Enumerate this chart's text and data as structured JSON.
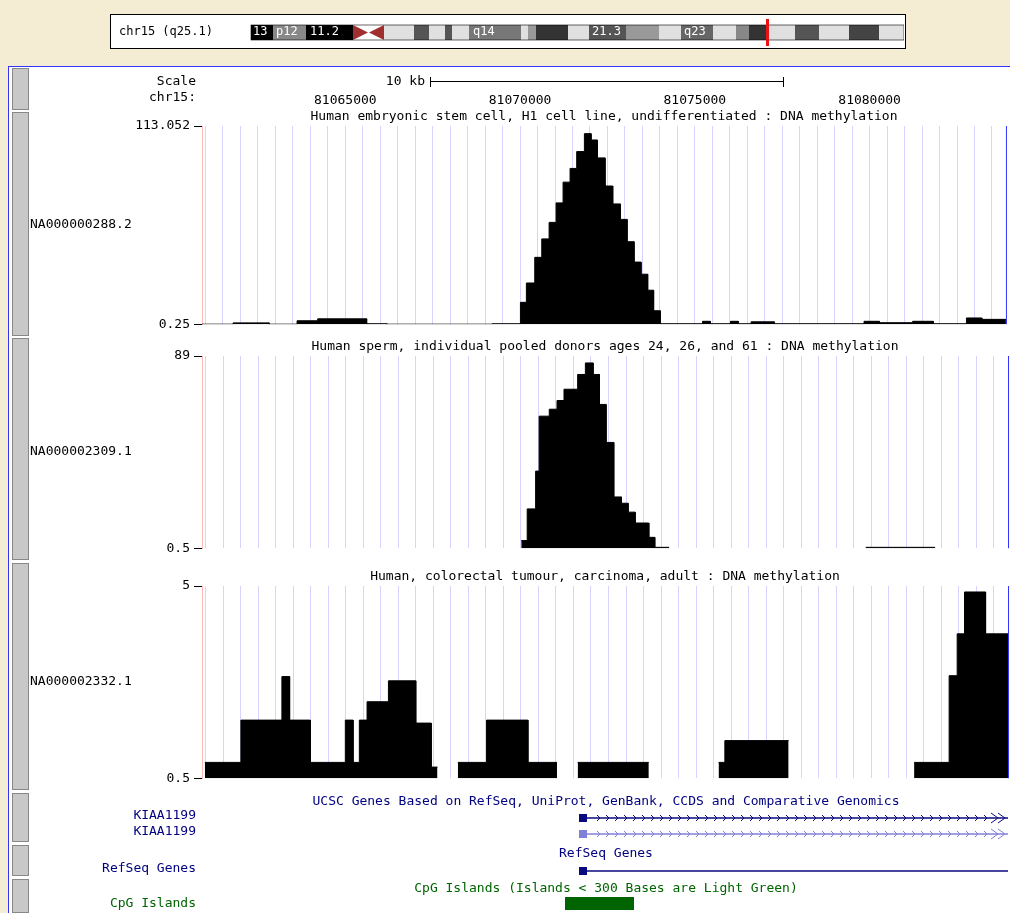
{
  "chart_data": [
    {
      "type": "other",
      "annotations": [
        "chr15 (q25.1)",
        "13",
        "p12",
        "11.2",
        "q14",
        "21.3",
        "q23"
      ]
    },
    {
      "type": "area",
      "title": "Human embryonic stem cell, H1 cell line, undifferentiated : DNA methylation",
      "ylabel": "NA000000288.2",
      "xlabel": "chr15:",
      "annotations": [
        "Scale",
        "10 kb"
      ],
      "grid": "x",
      "color": "#000000",
      "xlim": [
        81060900,
        81083900
      ],
      "ylim": [
        0.25,
        113.052
      ],
      "yticks": [
        113.052,
        0.25
      ],
      "xticks": [
        {
          "value": 81061000,
          "label": null
        },
        {
          "value": 81061500,
          "label": null
        },
        {
          "value": 81062000,
          "label": null
        },
        {
          "value": 81062500,
          "label": null
        },
        {
          "value": 81063000,
          "label": null
        },
        {
          "value": 81063500,
          "label": null
        },
        {
          "value": 81064000,
          "label": null
        },
        {
          "value": 81064500,
          "label": null
        },
        81065000,
        {
          "value": 81065500,
          "label": null
        },
        {
          "value": 81066000,
          "label": null
        },
        {
          "value": 81066500,
          "label": null
        },
        {
          "value": 81067000,
          "label": null
        },
        {
          "value": 81067500,
          "label": null
        },
        {
          "value": 81068000,
          "label": null
        },
        {
          "value": 81068500,
          "label": null
        },
        {
          "value": 81069000,
          "label": null
        },
        {
          "value": 81069500,
          "label": null
        },
        81070000,
        {
          "value": 81070500,
          "label": null
        },
        {
          "value": 81071000,
          "label": null
        },
        {
          "value": 81071500,
          "label": null
        },
        {
          "value": 81072000,
          "label": null
        },
        {
          "value": 81072500,
          "label": null
        },
        {
          "value": 81073000,
          "label": null
        },
        {
          "value": 81073500,
          "label": null
        },
        {
          "value": 81074000,
          "label": null
        },
        {
          "value": 81074500,
          "label": null
        },
        81075000,
        {
          "value": 81075500,
          "label": null
        },
        {
          "value": 81076000,
          "label": null
        },
        {
          "value": 81076500,
          "label": null
        },
        {
          "value": 81077000,
          "label": null
        },
        {
          "value": 81077500,
          "label": null
        },
        {
          "value": 81078000,
          "label": null
        },
        {
          "value": 81078500,
          "label": null
        },
        {
          "value": 81079000,
          "label": null
        },
        {
          "value": 81079500,
          "label": null
        },
        81080000,
        {
          "value": 81080500,
          "label": null
        },
        {
          "value": 81081000,
          "label": null
        },
        {
          "value": 81081500,
          "label": null
        },
        {
          "value": 81082000,
          "label": null
        },
        {
          "value": 81082500,
          "label": null
        },
        {
          "value": 81083000,
          "label": null
        },
        {
          "value": 81083500,
          "label": null
        }
      ],
      "x": [
        81060900,
        81061790,
        81061790,
        81062820,
        81062820,
        81063620,
        81063620,
        81064210,
        81064210,
        81065610,
        81065610,
        81066190,
        81066190,
        81069200,
        81069200,
        81070010,
        81070010,
        81070180,
        81070180,
        81070420,
        81070420,
        81070620,
        81070620,
        81070830,
        81070830,
        81071030,
        81071030,
        81071230,
        81071230,
        81071430,
        81071430,
        81071620,
        81071620,
        81071840,
        81071840,
        81072030,
        81072030,
        81072210,
        81072210,
        81072430,
        81072430,
        81072650,
        81072650,
        81072870,
        81072870,
        81073060,
        81073060,
        81073260,
        81073260,
        81073460,
        81073460,
        81073650,
        81073650,
        81073820,
        81073820,
        81074010,
        81074010,
        81075220,
        81075220,
        81075440,
        81075440,
        81076020,
        81076020,
        81076240,
        81076240,
        81076610,
        81076610,
        81077270,
        81077270,
        81079840,
        81079840,
        81080280,
        81080280,
        81081230,
        81081230,
        81081820,
        81081820,
        81082770,
        81082770,
        81083210,
        81083210,
        81083900
      ],
      "values": [
        0.25,
        0.25,
        1,
        1,
        0.25,
        0.25,
        2.2,
        2.2,
        3.3,
        3.3,
        0.5,
        0.5,
        0.25,
        0.25,
        0.5,
        0.5,
        12.7,
        12.7,
        23.7,
        23.7,
        38.3,
        38.3,
        48.8,
        48.8,
        58.2,
        58.2,
        69.3,
        69.3,
        81.1,
        81.1,
        88.9,
        88.9,
        98.5,
        98.5,
        108.7,
        108.7,
        105.1,
        105.1,
        94.9,
        94.9,
        78.9,
        78.9,
        68.7,
        68.7,
        59.9,
        59.9,
        47.2,
        47.2,
        35.6,
        35.6,
        28.7,
        28.7,
        19.6,
        19.6,
        7.9,
        7.9,
        0.5,
        0.5,
        1.9,
        1.9,
        0.5,
        0.5,
        1.9,
        1.9,
        0.5,
        0.5,
        1.6,
        1.6,
        0.5,
        0.5,
        1.9,
        1.9,
        1.1,
        1.1,
        1.9,
        1.9,
        0.5,
        0.5,
        3.8,
        3.8,
        3,
        3
      ]
    },
    {
      "type": "area",
      "title": "Human sperm, individual pooled donors ages 24, 26, and 61 : DNA methylation",
      "ylabel": "NA000002309.1",
      "grid": "x",
      "tick_labels": "y",
      "xlim": [
        81060900,
        81083900
      ],
      "ylim": [
        0.5,
        89
      ],
      "yticks": [
        89,
        0.5
      ],
      "xticks": [
        {
          "value": 81061000,
          "label": null
        },
        {
          "value": 81061500,
          "label": null
        },
        {
          "value": 81062000,
          "label": null
        },
        {
          "value": 81062500,
          "label": null
        },
        {
          "value": 81063000,
          "label": null
        },
        {
          "value": 81063500,
          "label": null
        },
        {
          "value": 81064000,
          "label": null
        },
        {
          "value": 81064500,
          "label": null
        },
        81065000,
        {
          "value": 81065500,
          "label": null
        },
        {
          "value": 81066000,
          "label": null
        },
        {
          "value": 81066500,
          "label": null
        },
        {
          "value": 81067000,
          "label": null
        },
        {
          "value": 81067500,
          "label": null
        },
        {
          "value": 81068000,
          "label": null
        },
        {
          "value": 81068500,
          "label": null
        },
        {
          "value": 81069000,
          "label": null
        },
        {
          "value": 81069500,
          "label": null
        },
        81070000,
        {
          "value": 81070500,
          "label": null
        },
        {
          "value": 81071000,
          "label": null
        },
        {
          "value": 81071500,
          "label": null
        },
        {
          "value": 81072000,
          "label": null
        },
        {
          "value": 81072500,
          "label": null
        },
        {
          "value": 81073000,
          "label": null
        },
        {
          "value": 81073500,
          "label": null
        },
        {
          "value": 81074000,
          "label": null
        },
        {
          "value": 81074500,
          "label": null
        },
        81075000,
        {
          "value": 81075500,
          "label": null
        },
        {
          "value": 81076000,
          "label": null
        },
        {
          "value": 81076500,
          "label": null
        },
        {
          "value": 81077000,
          "label": null
        },
        {
          "value": 81077500,
          "label": null
        },
        {
          "value": 81078000,
          "label": null
        },
        {
          "value": 81078500,
          "label": null
        },
        {
          "value": 81079000,
          "label": null
        },
        {
          "value": 81079500,
          "label": null
        },
        81080000,
        {
          "value": 81080500,
          "label": null
        },
        {
          "value": 81081000,
          "label": null
        },
        {
          "value": 81081500,
          "label": null
        },
        {
          "value": 81082000,
          "label": null
        },
        {
          "value": 81082500,
          "label": null
        },
        {
          "value": 81083000,
          "label": null
        },
        {
          "value": 81083500,
          "label": null
        }
      ],
      "series": [
        {
          "color": "#000000",
          "x": [
            81070010,
            81070180,
            81070180,
            81070420,
            81070420,
            81070520,
            81070520,
            81070810,
            81070810,
            81071030,
            81071030,
            81071230,
            81071230,
            81071620,
            81071620,
            81071840,
            81071840,
            81072060,
            81072060,
            81072240,
            81072240,
            81072430,
            81072430,
            81072650,
            81072650,
            81072870,
            81072870,
            81073060,
            81073060,
            81073260,
            81073260,
            81073650,
            81073650,
            81073820,
            81073820,
            81074230
          ],
          "values": [
            4,
            4,
            18.6,
            18.6,
            36,
            36,
            61.3,
            61.3,
            64.5,
            64.5,
            68.5,
            68.5,
            73.7,
            73.7,
            80.5,
            80.5,
            85.8,
            85.8,
            80.5,
            80.5,
            66.7,
            66.7,
            49.2,
            49.2,
            24.1,
            24.1,
            21.2,
            21.2,
            17.1,
            17.1,
            12.1,
            12.1,
            5.5,
            5.5,
            0.9,
            0.9
          ]
        },
        {
          "color": "#000000",
          "x": [
            81079840,
            81081820
          ],
          "values": [
            0.9,
            0.9
          ]
        }
      ]
    },
    {
      "type": "area",
      "title": "Human, colorectal tumour, carcinoma, adult : DNA methylation",
      "ylabel": "NA000002332.1",
      "grid": "x",
      "tick_labels": "y",
      "xlim": [
        81060900,
        81083900
      ],
      "ylim": [
        0.5,
        5
      ],
      "yticks": [
        5,
        0.5
      ],
      "xticks": [
        {
          "value": 81061000,
          "label": null
        },
        {
          "value": 81061500,
          "label": null
        },
        {
          "value": 81062000,
          "label": null
        },
        {
          "value": 81062500,
          "label": null
        },
        {
          "value": 81063000,
          "label": null
        },
        {
          "value": 81063500,
          "label": null
        },
        {
          "value": 81064000,
          "label": null
        },
        {
          "value": 81064500,
          "label": null
        },
        81065000,
        {
          "value": 81065500,
          "label": null
        },
        {
          "value": 81066000,
          "label": null
        },
        {
          "value": 81066500,
          "label": null
        },
        {
          "value": 81067000,
          "label": null
        },
        {
          "value": 81067500,
          "label": null
        },
        {
          "value": 81068000,
          "label": null
        },
        {
          "value": 81068500,
          "label": null
        },
        {
          "value": 81069000,
          "label": null
        },
        {
          "value": 81069500,
          "label": null
        },
        81070000,
        {
          "value": 81070500,
          "label": null
        },
        {
          "value": 81071000,
          "label": null
        },
        {
          "value": 81071500,
          "label": null
        },
        {
          "value": 81072000,
          "label": null
        },
        {
          "value": 81072500,
          "label": null
        },
        {
          "value": 81073000,
          "label": null
        },
        {
          "value": 81073500,
          "label": null
        },
        {
          "value": 81074000,
          "label": null
        },
        {
          "value": 81074500,
          "label": null
        },
        81075000,
        {
          "value": 81075500,
          "label": null
        },
        {
          "value": 81076000,
          "label": null
        },
        {
          "value": 81076500,
          "label": null
        },
        {
          "value": 81077000,
          "label": null
        },
        {
          "value": 81077500,
          "label": null
        },
        {
          "value": 81078000,
          "label": null
        },
        {
          "value": 81078500,
          "label": null
        },
        {
          "value": 81079000,
          "label": null
        },
        {
          "value": 81079500,
          "label": null
        },
        81080000,
        {
          "value": 81080500,
          "label": null
        },
        {
          "value": 81081000,
          "label": null
        },
        {
          "value": 81081500,
          "label": null
        },
        {
          "value": 81082000,
          "label": null
        },
        {
          "value": 81082500,
          "label": null
        },
        {
          "value": 81083000,
          "label": null
        },
        {
          "value": 81083500,
          "label": null
        }
      ],
      "series": [
        {
          "color": "#000000",
          "x": [
            81060980,
            81062010,
            81062010,
            81063180,
            81063180,
            81063400,
            81063400,
            81063990,
            81063990,
            81064990,
            81064990,
            81065210,
            81065210,
            81065390,
            81065390,
            81065610,
            81065610,
            81066220,
            81066220,
            81067000,
            81067000,
            81067440,
            81067440,
            81067620
          ],
          "values": [
            0.87,
            0.87,
            1.86,
            1.86,
            2.88,
            2.88,
            1.86,
            1.86,
            0.87,
            0.87,
            1.86,
            1.86,
            0.87,
            0.87,
            1.86,
            1.86,
            2.29,
            2.29,
            2.78,
            2.78,
            1.79,
            1.79,
            0.76,
            0.76
          ]
        },
        {
          "color": "#000000",
          "x": [
            81068200,
            81069020,
            81069020,
            81070200,
            81070200,
            81071030
          ],
          "values": [
            0.87,
            0.87,
            1.86,
            1.86,
            0.87,
            0.87
          ]
        },
        {
          "color": "#000000",
          "x": [
            81071620,
            81073650
          ],
          "values": [
            0.87,
            0.87
          ]
        },
        {
          "color": "#000000",
          "x": [
            81075640,
            81075820,
            81075820,
            81077640
          ],
          "values": [
            0.87,
            0.87,
            1.38,
            1.38
          ]
        },
        {
          "color": "#000000",
          "x": [
            81081220,
            81082220,
            81082220,
            81082450,
            81082450,
            81082660,
            81082660,
            81083260,
            81083260,
            81083900
          ],
          "values": [
            0.87,
            0.87,
            2.9,
            2.9,
            3.88,
            3.88,
            4.86,
            4.86,
            3.88,
            3.88
          ]
        }
      ]
    },
    {
      "type": "other",
      "annotations": [
        "UCSC Genes Based on RefSeq, UniProt, GenBank, CCDS and Comparative Genomics",
        "KIAA1199",
        "KIAA1199",
        "RefSeq Genes",
        "RefSeq Genes",
        "CpG Islands (Islands < 300 Bases are Light Green)",
        "CpG Islands"
      ]
    }
  ]
}
